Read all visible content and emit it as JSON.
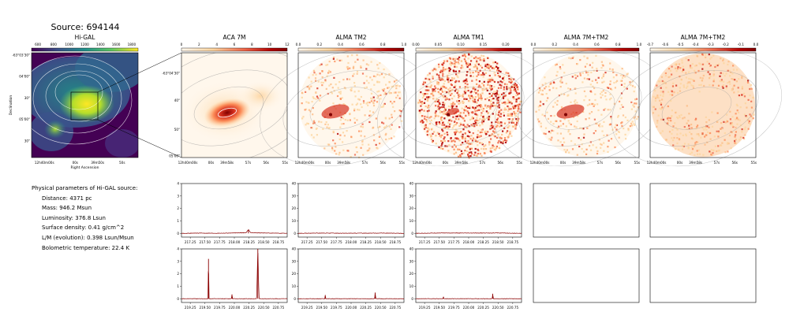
{
  "figure": {
    "title": "Source: 694144"
  },
  "params": {
    "heading": "Physical parameters of Hi-GAL source:",
    "lines": [
      "Distance: 4371 pc",
      "Mass: 946.2 Msun",
      "Luminosity: 376.8 Lsun",
      "Surface density: 0.41 g/cm^2",
      "L/M (evolution): 0.398 Lsun/Msun",
      "Bolometric temperature: 22.4 K"
    ]
  },
  "chart_data": [
    {
      "type": "heatmap",
      "title": "Hi-GAL",
      "colormap": "viridis",
      "colorbar_ticks": [
        "600",
        "800",
        "1000",
        "1200",
        "1400",
        "1600",
        "1800"
      ],
      "xlabel": "Right Ascension",
      "ylabel": "Declination",
      "x_ticks": [
        "12h40m00s",
        "00s",
        "39m50s",
        "50s"
      ],
      "y_ticks": [
        "-63°03'30\"",
        "04'00\"",
        "30\"",
        "05'00\"",
        "30\""
      ]
    },
    {
      "type": "heatmap",
      "title": "ACA 7M",
      "colormap": "OrRd",
      "colorbar_ticks": [
        "0",
        "2",
        "4",
        "6",
        "8",
        "10",
        "12"
      ],
      "x_ticks": [
        "12h40m00s",
        "00s",
        "39m58s",
        "57s",
        "56s",
        "55s"
      ],
      "y_ticks": [
        "-63°04'30\"",
        "40\"",
        "50\"",
        "05'00\""
      ]
    },
    {
      "type": "heatmap",
      "title": "ALMA TM2",
      "colormap": "OrRd",
      "colorbar_ticks": [
        "0.0",
        "0.2",
        "0.4",
        "0.6",
        "0.8",
        "1.0"
      ],
      "x_ticks": [
        "12h40m00s",
        "00s",
        "39m58s",
        "57s",
        "56s",
        "55s"
      ]
    },
    {
      "type": "heatmap",
      "title": "ALMA TM1",
      "colormap": "OrRd",
      "colorbar_ticks": [
        "0.00",
        "0.05",
        "0.10",
        "0.15",
        "0.20"
      ],
      "x_ticks": [
        "12h40m00s",
        "00s",
        "39m58s",
        "57s",
        "56s",
        "55s"
      ]
    },
    {
      "type": "heatmap",
      "title": "ALMA 7M+TM2",
      "colormap": "OrRd",
      "colorbar_ticks": [
        "0.0",
        "0.2",
        "0.4",
        "0.6",
        "0.8",
        "1.0"
      ],
      "x_ticks": [
        "12h40m00s",
        "00s",
        "39m58s",
        "57s",
        "56s",
        "55s"
      ]
    },
    {
      "type": "heatmap",
      "title": "ALMA 7M+TM2",
      "colormap": "OrRd",
      "colorbar_ticks": [
        "-0.7",
        "-0.6",
        "-0.5",
        "-0.4",
        "-0.3",
        "-0.2",
        "-0.1",
        "0.0"
      ],
      "x_ticks": [
        "12h40m00s",
        "00s",
        "39m58s",
        "57s",
        "56s",
        "55s"
      ]
    },
    {
      "type": "line",
      "panel": "spectrum row 1, ACA 7M",
      "xlim": [
        217.1,
        218.9
      ],
      "ylim": [
        -0.3,
        4
      ],
      "x_ticks": [
        217.25,
        217.5,
        217.75,
        218.0,
        218.25,
        218.5,
        218.75
      ],
      "y_ticks": [
        0,
        1,
        2,
        3,
        4
      ],
      "x": [
        217.1,
        217.4,
        217.7,
        218.0,
        218.2,
        218.24,
        218.28,
        218.6,
        218.9
      ],
      "y": [
        0,
        0.02,
        0.01,
        0.03,
        0.05,
        0.3,
        0.05,
        0.02,
        0
      ]
    },
    {
      "type": "line",
      "panel": "spectrum row 1, ALMA TM2",
      "xlim": [
        217.1,
        218.9
      ],
      "ylim": [
        -3,
        40
      ],
      "x_ticks": [
        217.25,
        217.5,
        217.75,
        218.0,
        218.25,
        218.5,
        218.75
      ],
      "y_ticks": [
        0,
        10,
        20,
        30,
        40
      ],
      "x": [
        217.1,
        217.5,
        218.0,
        218.5,
        218.9
      ],
      "y": [
        0,
        0.2,
        0.1,
        0.2,
        0
      ]
    },
    {
      "type": "line",
      "panel": "spectrum row 1, ALMA TM1",
      "xlim": [
        217.1,
        218.9
      ],
      "ylim": [
        -3,
        40
      ],
      "x_ticks": [
        217.25,
        217.5,
        217.75,
        218.0,
        218.25,
        218.5,
        218.75
      ],
      "y_ticks": [
        0,
        10,
        20,
        30,
        40
      ],
      "x": [
        217.1,
        217.5,
        218.0,
        218.5,
        218.9
      ],
      "y": [
        0,
        0.3,
        0.2,
        0.3,
        0
      ]
    },
    {
      "type": "line",
      "panel": "spectrum row 2, ACA 7M",
      "xlim": [
        219.1,
        220.9
      ],
      "ylim": [
        -0.3,
        4
      ],
      "x_ticks": [
        219.25,
        219.5,
        219.75,
        220.0,
        220.25,
        220.5,
        220.75
      ],
      "y_ticks": [
        0,
        1,
        2,
        3,
        4
      ],
      "x": [
        219.1,
        219.55,
        219.56,
        219.57,
        219.95,
        219.96,
        219.97,
        220.38,
        220.4,
        220.42,
        220.9
      ],
      "y": [
        0,
        0,
        3.2,
        0,
        0,
        0.35,
        0,
        0,
        4.0,
        0,
        0
      ]
    },
    {
      "type": "line",
      "panel": "spectrum row 2, ALMA TM2",
      "xlim": [
        219.1,
        220.9
      ],
      "ylim": [
        -3,
        40
      ],
      "x_ticks": [
        219.25,
        219.5,
        219.75,
        220.0,
        220.25,
        220.5,
        220.75
      ],
      "y_ticks": [
        0,
        10,
        20,
        30,
        40
      ],
      "x": [
        219.1,
        219.55,
        219.56,
        219.57,
        220.4,
        220.41,
        220.42,
        220.9
      ],
      "y": [
        0,
        0,
        3,
        0,
        0,
        5,
        0,
        0
      ]
    },
    {
      "type": "line",
      "panel": "spectrum row 2, ALMA TM1",
      "xlim": [
        219.1,
        220.9
      ],
      "ylim": [
        -3,
        40
      ],
      "x_ticks": [
        219.25,
        219.5,
        219.75,
        220.0,
        220.25,
        220.5,
        220.75
      ],
      "y_ticks": [
        0,
        10,
        20,
        30,
        40
      ],
      "x": [
        219.1,
        219.56,
        219.57,
        219.58,
        220.4,
        220.41,
        220.42,
        220.9
      ],
      "y": [
        0,
        0,
        1.5,
        0,
        0,
        4,
        0,
        0
      ]
    }
  ]
}
